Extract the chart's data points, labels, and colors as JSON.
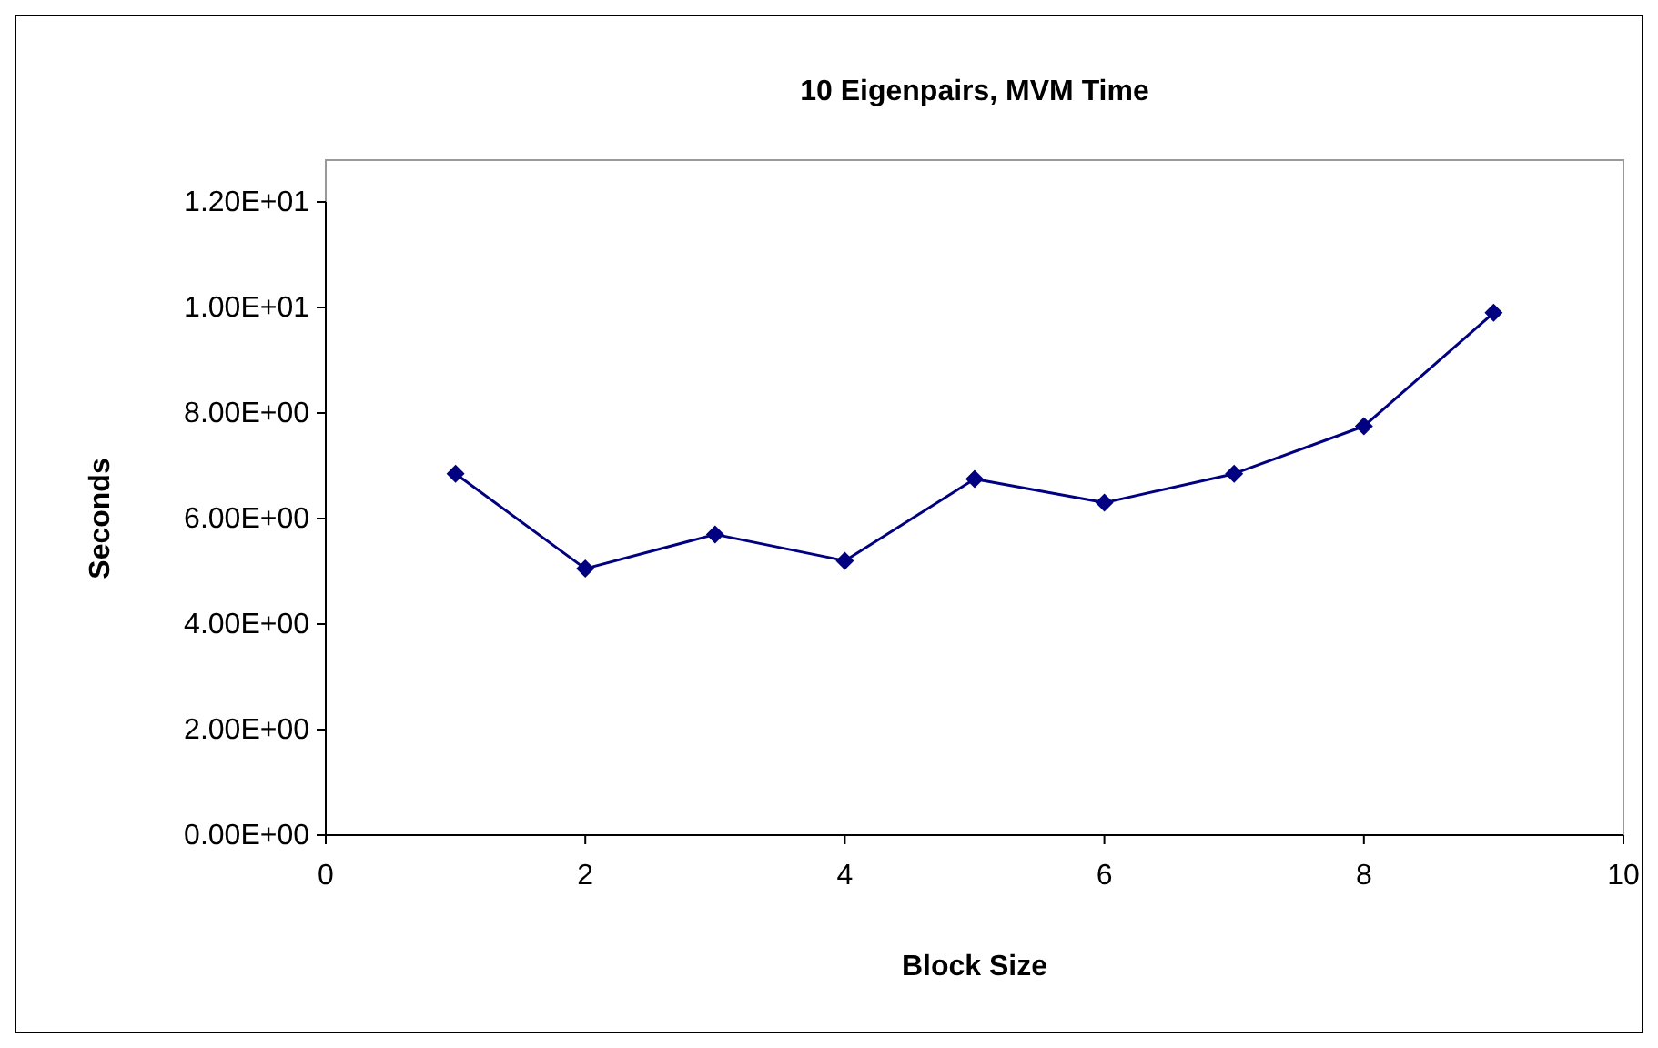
{
  "chart_data": {
    "type": "line",
    "title": "10 Eigenpairs, MVM Time",
    "xlabel": "Block Size",
    "ylabel": "Seconds",
    "x": [
      1,
      2,
      3,
      4,
      5,
      6,
      7,
      8,
      9
    ],
    "series": [
      {
        "color": "#000080",
        "values": [
          6.85,
          5.05,
          5.7,
          5.2,
          6.75,
          6.3,
          6.85,
          7.75,
          9.9
        ]
      }
    ],
    "xlim": [
      0,
      10
    ],
    "xticks": [
      0,
      2,
      4,
      6,
      8,
      10
    ],
    "ylim": [
      0,
      12
    ],
    "yticks": [
      {
        "value": 0,
        "label": "0.00E+00"
      },
      {
        "value": 2,
        "label": "2.00E+00"
      },
      {
        "value": 4,
        "label": "4.00E+00"
      },
      {
        "value": 6,
        "label": "6.00E+00"
      },
      {
        "value": 8,
        "label": "8.00E+00"
      },
      {
        "value": 10,
        "label": "1.00E+01"
      },
      {
        "value": 12,
        "label": "1.20E+01"
      }
    ],
    "grid": false,
    "marker": "diamond",
    "line_style": "solid"
  }
}
